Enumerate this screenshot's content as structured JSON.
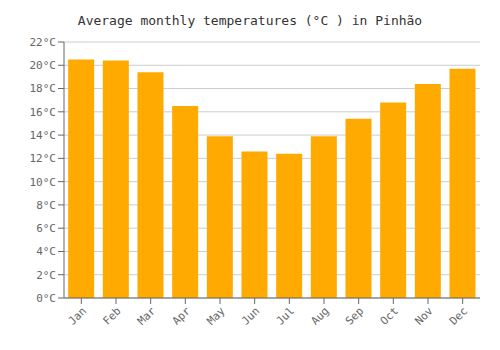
{
  "chart_data": {
    "type": "bar",
    "title": "Average monthly temperatures (°C ) in Pinhão",
    "categories": [
      "Jan",
      "Feb",
      "Mar",
      "Apr",
      "May",
      "Jun",
      "Jul",
      "Aug",
      "Sep",
      "Oct",
      "Nov",
      "Dec"
    ],
    "values": [
      20.5,
      20.4,
      19.4,
      16.5,
      13.9,
      12.6,
      12.4,
      13.9,
      15.4,
      16.8,
      18.4,
      19.7
    ],
    "color": "#FFAA00",
    "ylim": [
      0,
      22
    ],
    "yticks": [
      {
        "value": 0,
        "label": "0°C"
      },
      {
        "value": 2,
        "label": "2°C"
      },
      {
        "value": 4,
        "label": "4°C"
      },
      {
        "value": 6,
        "label": "6°C"
      },
      {
        "value": 8,
        "label": "8°C"
      },
      {
        "value": 10,
        "label": "10°C"
      },
      {
        "value": 12,
        "label": "12°C"
      },
      {
        "value": 14,
        "label": "14°C"
      },
      {
        "value": 16,
        "label": "16°C"
      },
      {
        "value": 18,
        "label": "18°C"
      },
      {
        "value": 20,
        "label": "20°C"
      },
      {
        "value": 22,
        "label": "22°C"
      }
    ],
    "grid": true
  }
}
